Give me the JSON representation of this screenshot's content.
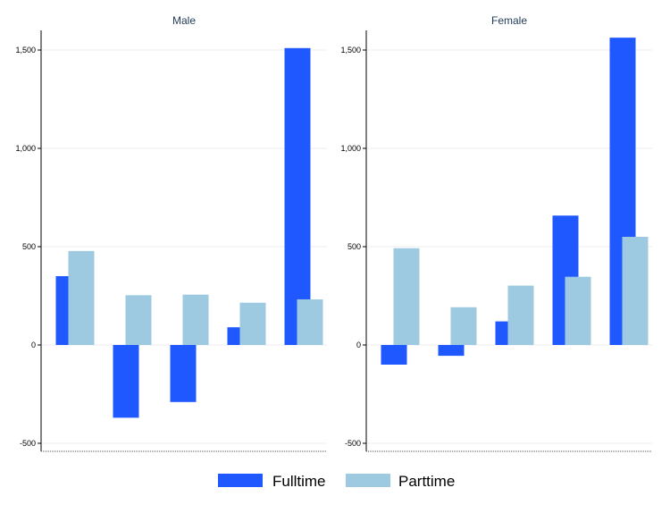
{
  "chart_data": {
    "type": "bar",
    "ylim": [
      -520,
      1600
    ],
    "y_ticks": [
      -500,
      0,
      500,
      1000,
      1500
    ],
    "y_tick_labels": [
      "-500",
      "0",
      "500",
      "1,000",
      "1,500"
    ],
    "grid": true,
    "legend_position": "bottom",
    "colors": {
      "Fulltime": "#1f58ff",
      "Parttime": "#9ecae1"
    },
    "panels": [
      {
        "title": "Male",
        "series": [
          {
            "name": "Fulltime",
            "values": [
              350,
              -370,
              -290,
              90,
              1510
            ]
          },
          {
            "name": "Parttime",
            "values": [
              478,
              253,
              256,
              215,
              232
            ]
          }
        ]
      },
      {
        "title": "Female",
        "series": [
          {
            "name": "Fulltime",
            "values": [
              -100,
              -55,
              120,
              658,
              1563
            ]
          },
          {
            "name": "Parttime",
            "values": [
              492,
              192,
              302,
              347,
              550
            ]
          }
        ]
      }
    ],
    "legend": [
      "Fulltime",
      "Parttime"
    ]
  }
}
